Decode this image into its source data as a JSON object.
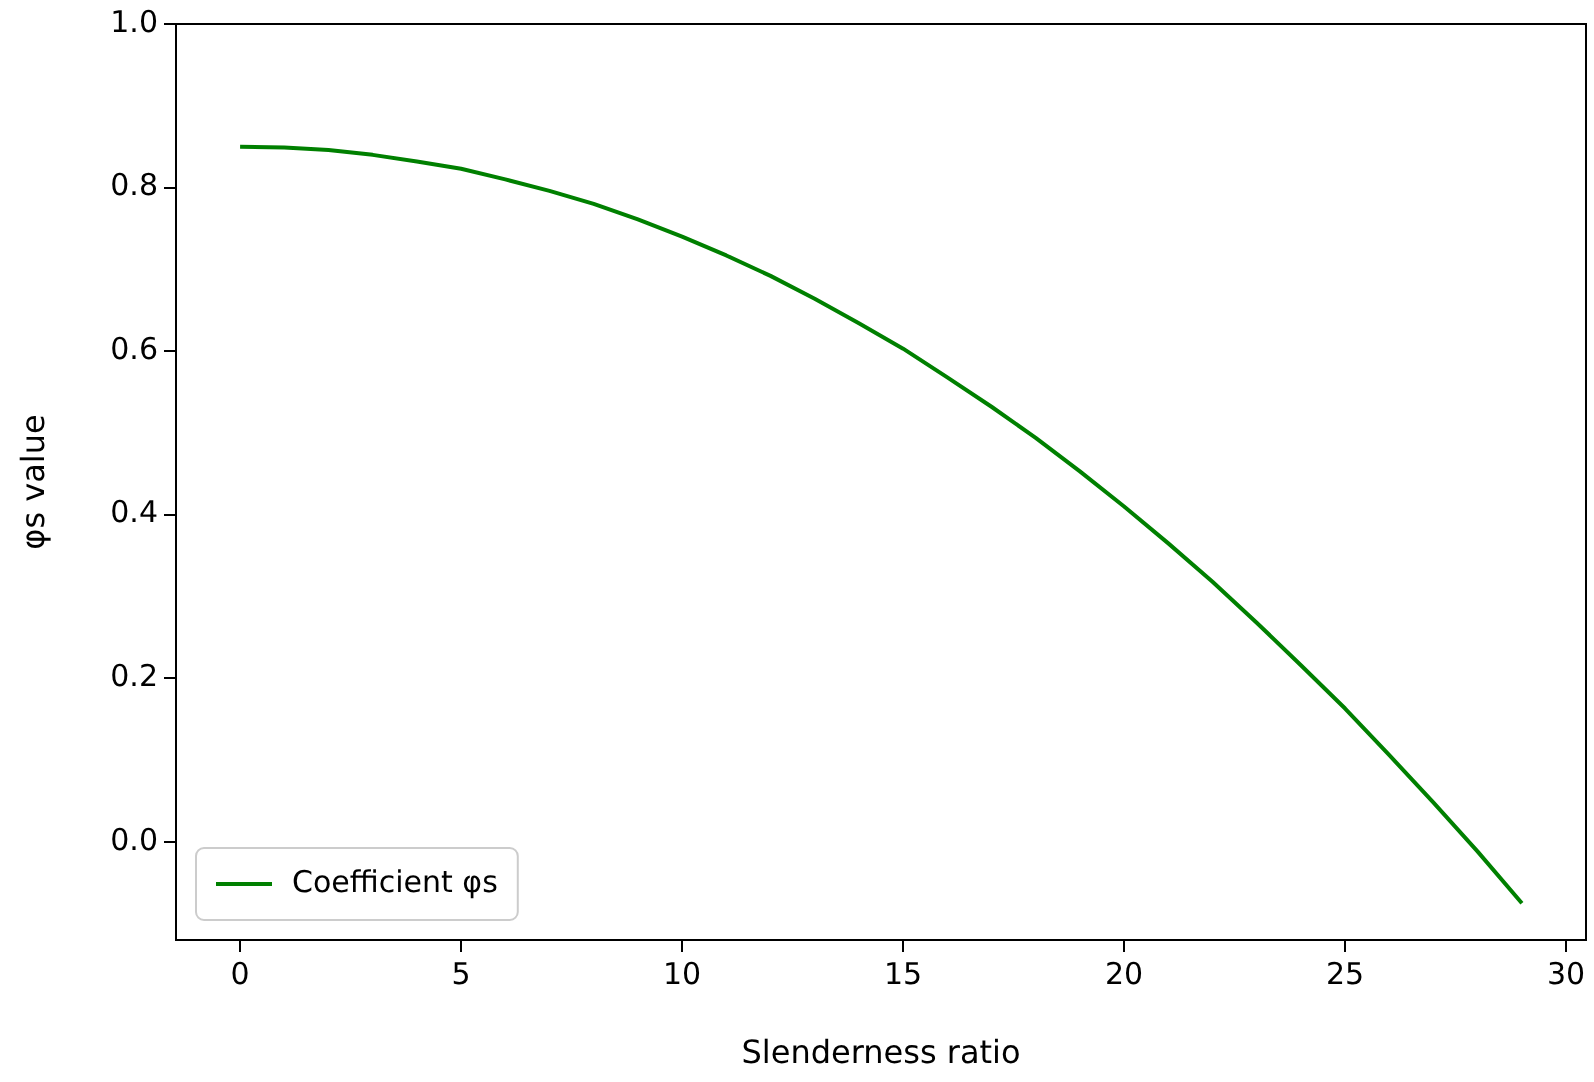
{
  "chart_data": {
    "type": "line",
    "xlabel": "Slenderness ratio",
    "ylabel": "φs value",
    "x": [
      0,
      1,
      2,
      3,
      4,
      5,
      6,
      7,
      8,
      9,
      10,
      11,
      12,
      13,
      14,
      15,
      16,
      17,
      18,
      19,
      20,
      21,
      22,
      23,
      24,
      25,
      26,
      27,
      28,
      29
    ],
    "series": [
      {
        "name": "Coefficient φs",
        "color": "#008000",
        "values": [
          0.85,
          0.849,
          0.846,
          0.84,
          0.832,
          0.823,
          0.81,
          0.796,
          0.78,
          0.761,
          0.74,
          0.717,
          0.692,
          0.664,
          0.634,
          0.603,
          0.568,
          0.532,
          0.494,
          0.453,
          0.41,
          0.365,
          0.318,
          0.268,
          0.216,
          0.163,
          0.106,
          0.048,
          -0.012,
          -0.075
        ]
      }
    ],
    "xlim": [
      -1.45,
      30.45
    ],
    "xticks": [
      0,
      5,
      10,
      15,
      20,
      25,
      30
    ],
    "ylim": [
      -0.12,
      1.0
    ],
    "yticks": [
      {
        "value": 0,
        "label": "0.0"
      },
      0.2,
      0.4,
      0.6,
      0.8,
      {
        "value": 1,
        "label": "1.0"
      }
    ],
    "grid": false,
    "legend": "bottom left",
    "marker": "none",
    "line_style": "solid"
  }
}
